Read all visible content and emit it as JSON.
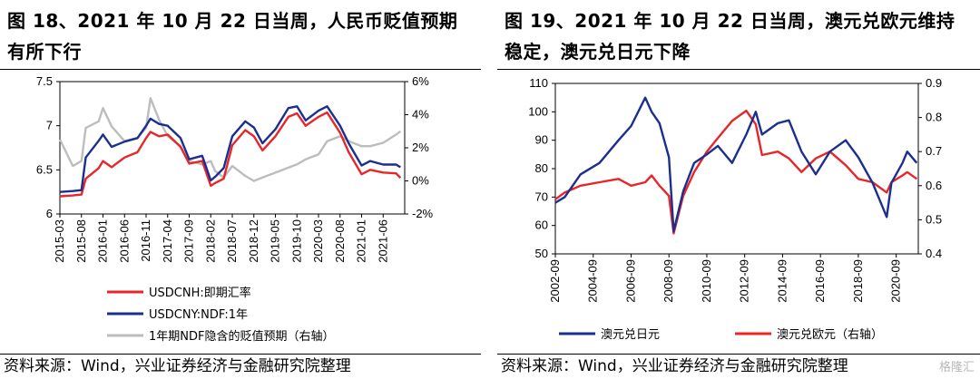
{
  "figure_left": {
    "title_line1": "图 18、2021 年 10 月 22 日当周，人民币贬值预期",
    "title_line2": "有所下行",
    "source": "资料来源：Wind，兴业证券经济与金融研究院整理"
  },
  "figure_right": {
    "title_line1": "图 19、2021 年 10 月 22 日当周，澳元兑欧元维持",
    "title_line2": "稳定，澳元兑日元下降",
    "source": "资料来源：Wind，兴业证券经济与金融研究院整理",
    "watermark": "格隆汇"
  },
  "chart_data": [
    {
      "type": "line",
      "title": "",
      "x_ticks": [
        "2015-03",
        "2015-08",
        "2016-01",
        "2016-06",
        "2016-11",
        "2017-04",
        "2017-09",
        "2018-02",
        "2018-07",
        "2018-12",
        "2019-05",
        "2019-10",
        "2020-03",
        "2020-08",
        "2021-01",
        "2021-06"
      ],
      "ylim": [
        6,
        7.5
      ],
      "y_ticks": [
        "6",
        "6.5",
        "7",
        "7.5"
      ],
      "y2lim": [
        -2,
        6
      ],
      "y2_ticks": [
        "-2%",
        "0%",
        "2%",
        "4%",
        "6%"
      ],
      "legend_position": "bottom",
      "colors": {
        "cnh": "#e8262a",
        "cny": "#1b2f8f",
        "ndf": "#bdbdbd"
      },
      "series": [
        {
          "name": "USDCNH:即期汇率",
          "axis": "left",
          "color": "#e8262a",
          "x": [
            "2015-03",
            "2015-06",
            "2015-08",
            "2015-09",
            "2015-12",
            "2016-01",
            "2016-03",
            "2016-06",
            "2016-09",
            "2016-11",
            "2016-12",
            "2017-02",
            "2017-04",
            "2017-07",
            "2017-09",
            "2017-12",
            "2018-02",
            "2018-03",
            "2018-05",
            "2018-07",
            "2018-10",
            "2018-12",
            "2019-02",
            "2019-05",
            "2019-08",
            "2019-10",
            "2019-12",
            "2020-03",
            "2020-05",
            "2020-08",
            "2020-10",
            "2021-01",
            "2021-03",
            "2021-06",
            "2021-09",
            "2021-10"
          ],
          "values": [
            6.2,
            6.21,
            6.22,
            6.4,
            6.52,
            6.6,
            6.53,
            6.64,
            6.7,
            6.86,
            6.93,
            6.88,
            6.9,
            6.76,
            6.57,
            6.6,
            6.32,
            6.35,
            6.4,
            6.78,
            6.95,
            6.88,
            6.72,
            6.88,
            7.1,
            7.14,
            7.0,
            7.1,
            7.15,
            6.92,
            6.7,
            6.45,
            6.5,
            6.47,
            6.46,
            6.41
          ]
        },
        {
          "name": "USDCNY:NDF:1年",
          "axis": "left",
          "color": "#1b2f8f",
          "x": [
            "2015-03",
            "2015-06",
            "2015-08",
            "2015-09",
            "2015-12",
            "2016-01",
            "2016-03",
            "2016-06",
            "2016-09",
            "2016-11",
            "2016-12",
            "2017-02",
            "2017-04",
            "2017-07",
            "2017-09",
            "2017-12",
            "2018-02",
            "2018-03",
            "2018-05",
            "2018-07",
            "2018-10",
            "2018-12",
            "2019-02",
            "2019-05",
            "2019-08",
            "2019-10",
            "2019-12",
            "2020-03",
            "2020-05",
            "2020-08",
            "2020-10",
            "2021-01",
            "2021-03",
            "2021-06",
            "2021-09",
            "2021-10"
          ],
          "values": [
            6.25,
            6.26,
            6.27,
            6.64,
            6.83,
            6.9,
            6.76,
            6.82,
            6.86,
            7.0,
            7.08,
            7.02,
            7.0,
            6.86,
            6.62,
            6.66,
            6.38,
            6.42,
            6.52,
            6.88,
            7.05,
            6.98,
            6.8,
            6.96,
            7.2,
            7.22,
            7.06,
            7.17,
            7.22,
            7.0,
            6.8,
            6.55,
            6.6,
            6.56,
            6.56,
            6.53
          ]
        },
        {
          "name": "1年期NDF隐含的贬值预期（右轴）",
          "axis": "right",
          "color": "#bdbdbd",
          "x": [
            "2015-03",
            "2015-06",
            "2015-08",
            "2015-09",
            "2015-12",
            "2016-01",
            "2016-03",
            "2016-06",
            "2016-09",
            "2016-11",
            "2016-12",
            "2017-02",
            "2017-04",
            "2017-07",
            "2017-09",
            "2017-12",
            "2018-02",
            "2018-03",
            "2018-05",
            "2018-07",
            "2018-10",
            "2018-12",
            "2019-02",
            "2019-05",
            "2019-08",
            "2019-10",
            "2019-12",
            "2020-03",
            "2020-05",
            "2020-08",
            "2020-10",
            "2021-01",
            "2021-03",
            "2021-06",
            "2021-09",
            "2021-10"
          ],
          "values": [
            2.5,
            0.9,
            1.2,
            3.2,
            3.6,
            4.4,
            3.3,
            2.4,
            2.6,
            3.2,
            5.0,
            3.7,
            2.7,
            2.1,
            1.2,
            1.0,
            1.2,
            0.6,
            0.2,
            0.9,
            0.3,
            0.0,
            0.2,
            0.5,
            0.8,
            1.0,
            1.3,
            1.6,
            2.4,
            2.7,
            2.4,
            2.1,
            2.1,
            2.3,
            2.8,
            3.0
          ]
        }
      ]
    },
    {
      "type": "line",
      "title": "",
      "x_ticks": [
        "2002-09",
        "2004-09",
        "2006-09",
        "2008-09",
        "2010-09",
        "2012-09",
        "2014-09",
        "2016-09",
        "2018-09",
        "2020-09"
      ],
      "ylim": [
        50,
        110
      ],
      "y_ticks": [
        "50",
        "60",
        "70",
        "80",
        "90",
        "100",
        "110"
      ],
      "y2lim": [
        0.4,
        0.9
      ],
      "y2_ticks": [
        "0.4",
        "0.5",
        "0.6",
        "0.7",
        "0.8",
        "0.9"
      ],
      "legend_position": "bottom",
      "colors": {
        "audjpy": "#1b2f8f",
        "audeur": "#e8262a"
      },
      "series": [
        {
          "name": "澳元兑日元",
          "axis": "left",
          "color": "#1b2f8f",
          "x": [
            "2002-09",
            "2003-03",
            "2004-01",
            "2005-01",
            "2006-01",
            "2006-09",
            "2007-06",
            "2007-10",
            "2008-03",
            "2008-09",
            "2008-12",
            "2009-06",
            "2010-01",
            "2010-09",
            "2011-04",
            "2012-01",
            "2012-10",
            "2013-04",
            "2013-08",
            "2014-06",
            "2015-01",
            "2015-09",
            "2016-06",
            "2017-03",
            "2018-01",
            "2018-09",
            "2019-06",
            "2020-03",
            "2020-06",
            "2021-01",
            "2021-04",
            "2021-10"
          ],
          "values": [
            68,
            70,
            78,
            82,
            90,
            95,
            105,
            100,
            96,
            84,
            58,
            72,
            82,
            85,
            88,
            82,
            92,
            100,
            92,
            96,
            97,
            86,
            78,
            86,
            90,
            84,
            75,
            63,
            75,
            82,
            86,
            82
          ]
        },
        {
          "name": "澳元兑欧元（右轴）",
          "axis": "right",
          "color": "#e8262a",
          "x": [
            "2002-09",
            "2003-03",
            "2004-01",
            "2005-01",
            "2006-01",
            "2006-09",
            "2007-06",
            "2007-10",
            "2008-03",
            "2008-09",
            "2008-12",
            "2009-06",
            "2010-01",
            "2010-09",
            "2011-04",
            "2012-01",
            "2012-10",
            "2013-04",
            "2013-08",
            "2014-06",
            "2015-01",
            "2015-09",
            "2016-06",
            "2017-03",
            "2018-01",
            "2018-09",
            "2019-06",
            "2020-03",
            "2020-06",
            "2021-01",
            "2021-04",
            "2021-10"
          ],
          "values": [
            0.56,
            0.58,
            0.6,
            0.61,
            0.62,
            0.6,
            0.61,
            0.63,
            0.6,
            0.57,
            0.46,
            0.57,
            0.64,
            0.7,
            0.74,
            0.79,
            0.82,
            0.78,
            0.69,
            0.7,
            0.68,
            0.64,
            0.68,
            0.7,
            0.66,
            0.62,
            0.61,
            0.58,
            0.61,
            0.63,
            0.64,
            0.62
          ]
        }
      ]
    }
  ]
}
